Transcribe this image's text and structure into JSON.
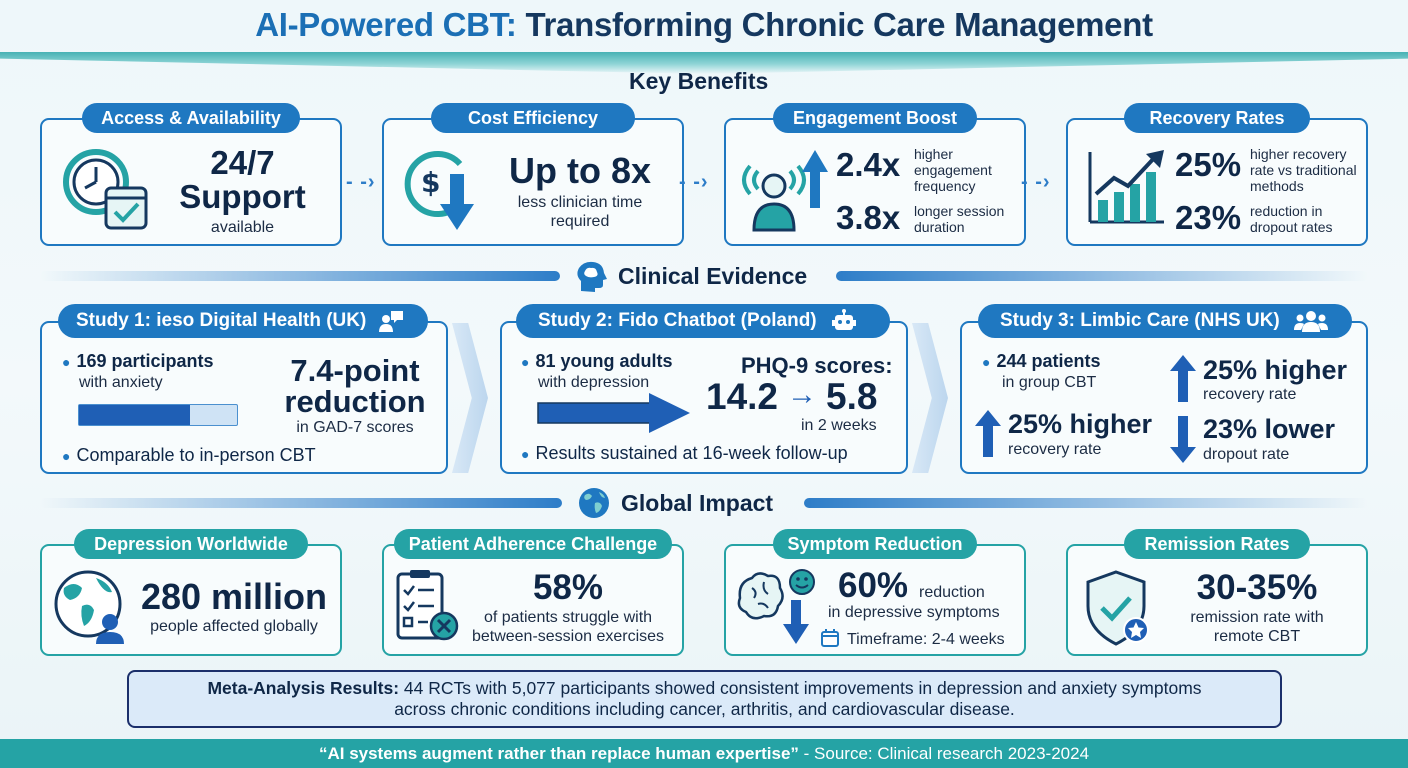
{
  "title": {
    "accent": "AI-Powered CBT:",
    "rest": "Transforming Chronic Care Management"
  },
  "key_benefits": {
    "heading": "Key Benefits",
    "cards": [
      {
        "label": "Access & Availability",
        "big1": "24/7",
        "big2": "Support",
        "sub": "available"
      },
      {
        "label": "Cost Efficiency",
        "big": "Up to 8x",
        "sub1": "less clinician time",
        "sub2": "required"
      },
      {
        "label": "Engagement Boost",
        "v1": "2.4x",
        "d1a": "higher",
        "d1b": "engagement",
        "d1c": "frequency",
        "v2": "3.8x",
        "d2a": "longer session",
        "d2b": "duration"
      },
      {
        "label": "Recovery Rates",
        "v1": "25%",
        "d1a": "higher recovery",
        "d1b": "rate vs traditional",
        "d1c": "methods",
        "v2": "23%",
        "d2a": "reduction in",
        "d2b": "dropout rates"
      }
    ]
  },
  "clinical_evidence": {
    "heading": "Clinical Evidence",
    "study1": {
      "label": "Study 1: ieso Digital Health (UK)",
      "b1": "169 participants",
      "b1sub": "with anxiety",
      "big1": "7.4-point",
      "big2": "reduction",
      "bigsub": "in GAD-7 scores",
      "b2": "Comparable to in-person CBT",
      "progress": 0.7
    },
    "study2": {
      "label": "Study 2: Fido Chatbot (Poland)",
      "b1": "81 young adults",
      "b1sub": "with depression",
      "phq": "PHQ-9 scores:",
      "from": "14.2",
      "to": "5.8",
      "weeks": "in 2 weeks",
      "b2": "Results sustained at 16-week follow-up"
    },
    "study3": {
      "label": "Study 3: Limbic Care (NHS UK)",
      "b1": "244 patients",
      "b1sub": "in group CBT",
      "r1": "25% higher",
      "r1sub": "recovery rate",
      "r2": "25% higher",
      "r2sub": "recovery rate",
      "r3": "23% lower",
      "r3sub": "dropout rate"
    }
  },
  "global_impact": {
    "heading": "Global Impact",
    "cards": [
      {
        "label": "Depression Worldwide",
        "big": "280 million",
        "sub": "people affected globally"
      },
      {
        "label": "Patient Adherence Challenge",
        "big": "58%",
        "sub1": "of patients struggle with",
        "sub2": "between-session exercises"
      },
      {
        "label": "Symptom Reduction",
        "big": "60%",
        "bigsuffix": "reduction",
        "sub": "in depressive symptoms",
        "timeframe": "Timeframe: 2-4 weeks"
      },
      {
        "label": "Remission Rates",
        "big": "30-35%",
        "sub1": "remission rate with",
        "sub2": "remote CBT"
      }
    ]
  },
  "meta": {
    "lead": "Meta-Analysis Results:",
    "text1": " 44 RCTs with 5,077 participants showed consistent improvements in depression and anxiety symptoms",
    "text2": "across chronic conditions including cancer, arthritis, and cardiovascular disease."
  },
  "footer": {
    "quote": "“AI systems augment rather than replace human expertise”",
    "source": " - Source: Clinical research 2023-2024"
  },
  "colors": {
    "blue": "#1f78c1",
    "teal": "#25a3a5",
    "navy": "#0f2747"
  }
}
